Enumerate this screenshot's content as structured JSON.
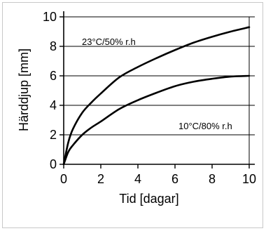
{
  "chart_data": {
    "type": "line",
    "xlabel": "Tid [dagar]",
    "ylabel": "Härddjup [mm]",
    "xlim": [
      0,
      10
    ],
    "ylim": [
      0,
      10
    ],
    "xticks": [
      0,
      2,
      4,
      6,
      8,
      10
    ],
    "yticks": [
      0,
      2,
      4,
      6,
      8,
      10
    ],
    "grid": true,
    "legend": "none",
    "series": [
      {
        "name": "23°C/50% r.h",
        "x": [
          0,
          0.25,
          0.5,
          1,
          1.5,
          2,
          3,
          4,
          5,
          6,
          7,
          8,
          9,
          10
        ],
        "y": [
          0,
          1.5,
          2.4,
          3.5,
          4.2,
          4.8,
          5.9,
          6.6,
          7.2,
          7.75,
          8.25,
          8.65,
          9.0,
          9.3
        ]
      },
      {
        "name": "10°C/80% r.h",
        "x": [
          0,
          0.25,
          0.5,
          1,
          1.5,
          2,
          3,
          4,
          5,
          6,
          7,
          8,
          9,
          10
        ],
        "y": [
          0,
          0.85,
          1.3,
          2.0,
          2.5,
          2.9,
          3.75,
          4.35,
          4.85,
          5.3,
          5.6,
          5.8,
          5.95,
          6.0
        ]
      }
    ],
    "annotations": [
      "23°C/50% r.h",
      "10°C/80% r.h"
    ]
  }
}
